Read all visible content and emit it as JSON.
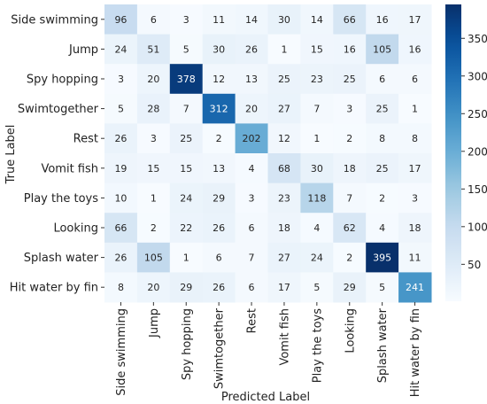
{
  "chart_data": {
    "type": "heatmap",
    "title": "",
    "xlabel": "Predicted Label",
    "ylabel": "True Label",
    "categories": [
      "Side swimming",
      "Jump",
      "Spy hopping",
      "Swimtogether",
      "Rest",
      "Vomit fish",
      "Play the toys",
      "Looking",
      "Splash water",
      "Hit water by fin"
    ],
    "matrix": [
      [
        96,
        6,
        3,
        11,
        14,
        30,
        14,
        66,
        16,
        17
      ],
      [
        24,
        51,
        5,
        30,
        26,
        1,
        15,
        16,
        105,
        16
      ],
      [
        3,
        20,
        378,
        12,
        13,
        25,
        23,
        25,
        6,
        6
      ],
      [
        5,
        28,
        7,
        312,
        20,
        27,
        7,
        3,
        25,
        1
      ],
      [
        26,
        3,
        25,
        2,
        202,
        12,
        1,
        2,
        8,
        8
      ],
      [
        19,
        15,
        15,
        13,
        4,
        68,
        30,
        18,
        25,
        17
      ],
      [
        10,
        1,
        24,
        29,
        3,
        23,
        118,
        7,
        2,
        3
      ],
      [
        66,
        2,
        22,
        26,
        6,
        18,
        4,
        62,
        4,
        18
      ],
      [
        26,
        105,
        1,
        6,
        7,
        27,
        24,
        2,
        395,
        11
      ],
      [
        8,
        20,
        29,
        26,
        6,
        17,
        5,
        29,
        5,
        241
      ]
    ],
    "value_range": [
      1,
      395
    ],
    "colormap": "Blues",
    "colorbar_ticks": [
      50,
      100,
      150,
      200,
      250,
      300,
      350
    ]
  }
}
